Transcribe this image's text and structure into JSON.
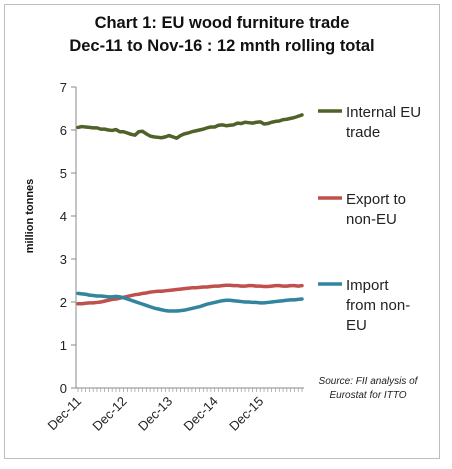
{
  "chart_data": {
    "type": "line",
    "title_line1": "Chart 1: EU wood furniture trade",
    "title_line2": "Dec-11 to Nov-16 : 12 mnth rolling total",
    "ylabel": "million tonnes",
    "xlabel": "",
    "ylim": [
      0,
      7
    ],
    "yticks": [
      0,
      1,
      2,
      3,
      4,
      5,
      6,
      7
    ],
    "x_tick_labels": [
      "Dec-11",
      "Dec-12",
      "Dec-13",
      "Dec-14",
      "Dec-15"
    ],
    "x_tick_index": [
      0,
      12,
      24,
      36,
      48
    ],
    "n_points": 60,
    "grid": false,
    "legend_placement": "right",
    "source": [
      "Source: FII analysis of",
      "Eurostat for ITTO"
    ],
    "series": [
      {
        "name": "Internal EU trade",
        "legend_lines": [
          "Internal EU",
          "trade"
        ],
        "color": "#4f6228",
        "values": [
          6.06,
          6.08,
          6.07,
          6.06,
          6.05,
          6.05,
          6.02,
          6.02,
          6.0,
          5.99,
          6.01,
          5.96,
          5.96,
          5.93,
          5.9,
          5.88,
          5.96,
          5.97,
          5.91,
          5.86,
          5.84,
          5.83,
          5.82,
          5.84,
          5.87,
          5.84,
          5.81,
          5.87,
          5.91,
          5.93,
          5.96,
          5.98,
          6.0,
          6.02,
          6.05,
          6.07,
          6.07,
          6.11,
          6.12,
          6.1,
          6.11,
          6.12,
          6.16,
          6.15,
          6.18,
          6.17,
          6.16,
          6.18,
          6.19,
          6.14,
          6.15,
          6.18,
          6.2,
          6.21,
          6.24,
          6.25,
          6.27,
          6.29,
          6.32,
          6.35
        ]
      },
      {
        "name": "Export to non-EU",
        "legend_lines": [
          "Export to",
          "non-EU"
        ],
        "color": "#c0504d",
        "values": [
          1.96,
          1.96,
          1.97,
          1.98,
          1.98,
          1.99,
          2.0,
          2.02,
          2.04,
          2.06,
          2.07,
          2.09,
          2.11,
          2.13,
          2.15,
          2.17,
          2.18,
          2.2,
          2.21,
          2.23,
          2.24,
          2.25,
          2.25,
          2.26,
          2.27,
          2.28,
          2.29,
          2.3,
          2.31,
          2.32,
          2.33,
          2.33,
          2.34,
          2.35,
          2.35,
          2.36,
          2.37,
          2.37,
          2.38,
          2.39,
          2.39,
          2.38,
          2.38,
          2.37,
          2.37,
          2.38,
          2.38,
          2.37,
          2.37,
          2.36,
          2.36,
          2.37,
          2.38,
          2.38,
          2.37,
          2.37,
          2.38,
          2.38,
          2.37,
          2.38
        ]
      },
      {
        "name": "Import from non-EU",
        "legend_lines": [
          "Import",
          "from non-",
          "EU"
        ],
        "color": "#31859c",
        "values": [
          2.2,
          2.19,
          2.18,
          2.16,
          2.15,
          2.14,
          2.14,
          2.13,
          2.12,
          2.12,
          2.13,
          2.12,
          2.1,
          2.07,
          2.04,
          2.01,
          1.98,
          1.95,
          1.92,
          1.89,
          1.86,
          1.84,
          1.82,
          1.8,
          1.79,
          1.79,
          1.79,
          1.8,
          1.81,
          1.83,
          1.85,
          1.87,
          1.89,
          1.92,
          1.95,
          1.97,
          1.99,
          2.01,
          2.03,
          2.04,
          2.04,
          2.03,
          2.02,
          2.01,
          2.0,
          2.0,
          1.99,
          1.99,
          1.98,
          1.98,
          1.99,
          2.0,
          2.01,
          2.02,
          2.03,
          2.04,
          2.05,
          2.05,
          2.06,
          2.07
        ]
      }
    ]
  }
}
